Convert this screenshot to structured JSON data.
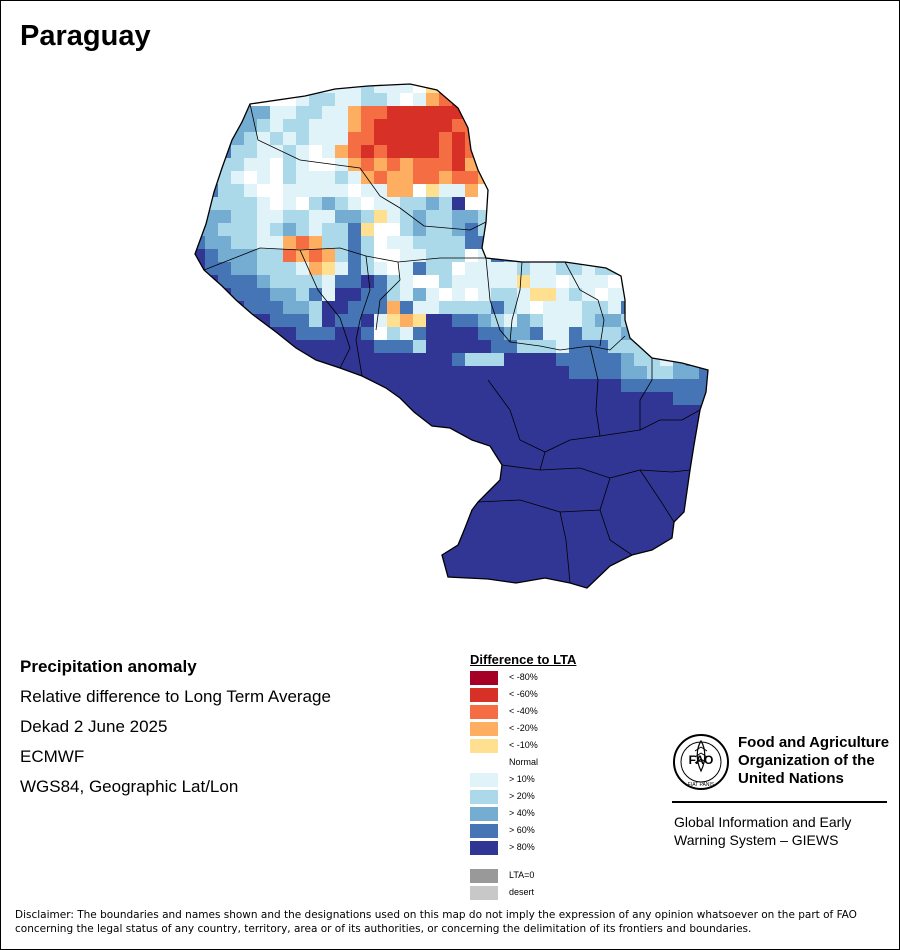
{
  "map": {
    "title": "Paraguay"
  },
  "info": {
    "heading": "Precipitation anomaly",
    "line1": "Relative difference to Long Term Average",
    "line2": "Dekad 2 June 2025",
    "line3": "ECMWF",
    "line4": "WGS84, Geographic Lat/Lon"
  },
  "legend": {
    "title": "Difference to LTA",
    "items": [
      {
        "label": "< -80%",
        "color": "#a50026"
      },
      {
        "label": "< -60%",
        "color": "#d73027"
      },
      {
        "label": "< -40%",
        "color": "#f46d43"
      },
      {
        "label": "< -20%",
        "color": "#fdae61"
      },
      {
        "label": "< -10%",
        "color": "#fee090"
      },
      {
        "label": "Normal",
        "color": "#ffffff"
      },
      {
        "label": "> 10%",
        "color": "#e0f3f8"
      },
      {
        "label": "> 20%",
        "color": "#abd9e9"
      },
      {
        "label": "> 40%",
        "color": "#74add1"
      },
      {
        "label": "> 60%",
        "color": "#4575b4"
      },
      {
        "label": "> 80%",
        "color": "#313695"
      },
      {
        "label": "LTA=0",
        "color": "#999999"
      },
      {
        "label": "desert",
        "color": "#c8c8c8"
      }
    ]
  },
  "organization": {
    "logo_text": "FAO",
    "logo_motto": "FIAT PANIS",
    "name_line1": "Food and Agriculture",
    "name_line2": "Organization of the",
    "name_line3": "United Nations",
    "system_line1": "Global Information and Early",
    "system_line2": "Warning System – GIEWS"
  },
  "disclaimer": "Disclaimer: The boundaries and names shown and the designations used on this map do not imply the expression of any opinion whatsoever on the part of FAO concerning the legal status of any country, territory, area or of its authorities, or concerning the delimitation of its frontiers and boundaries."
}
